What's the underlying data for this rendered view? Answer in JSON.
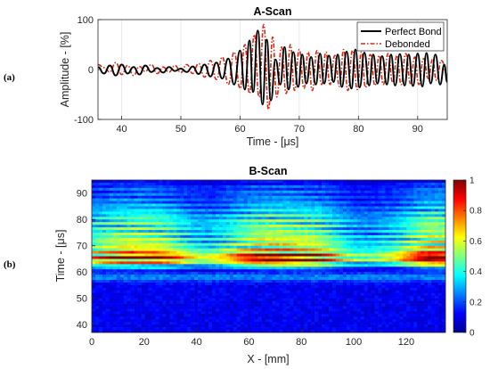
{
  "panel_labels": {
    "a": "(a)",
    "b": "(b)"
  },
  "chart_data": [
    {
      "type": "line",
      "title": "A-Scan",
      "xlabel": "Time - [μs]",
      "ylabel": "Amplitude - [%]",
      "xlim": [
        36,
        95
      ],
      "ylim": [
        -100,
        100
      ],
      "xticks": [
        40,
        50,
        60,
        70,
        80,
        90
      ],
      "yticks": [
        -100,
        0,
        100
      ],
      "grid": true,
      "legend_position": "top-right",
      "series": [
        {
          "name": "Perfect Bond",
          "color": "#000000",
          "style": "solid",
          "x": [
            36,
            37,
            38,
            39,
            40,
            41,
            42,
            43,
            44,
            45,
            46,
            47,
            48,
            49,
            50,
            51,
            52,
            53,
            54,
            55,
            56,
            57,
            58,
            59,
            60,
            60.8,
            61.6,
            62.2,
            63.0,
            63.8,
            64.5,
            65.2,
            66.0,
            66.8,
            67.5,
            68.2,
            69.0,
            69.8,
            70.5,
            71.2,
            72.0,
            72.8,
            73.5,
            74.2,
            75.0,
            75.8,
            76.5,
            77.2,
            78.0,
            78.8,
            79.5,
            80.2,
            81.0,
            81.8,
            82.5,
            83.2,
            84.0,
            84.8,
            85.5,
            86.2,
            87.0,
            87.8,
            88.5,
            89.2,
            90.0,
            90.8,
            91.5,
            92.2,
            93.0,
            93.8,
            94.5,
            95.0
          ],
          "y": [
            5,
            -8,
            8,
            -12,
            10,
            -8,
            5,
            -10,
            8,
            -5,
            3,
            -6,
            5,
            -3,
            2,
            -5,
            6,
            -9,
            10,
            -14,
            14,
            -18,
            22,
            -30,
            38,
            -40,
            58,
            -45,
            78,
            -70,
            60,
            -62,
            20,
            -30,
            45,
            -40,
            35,
            -35,
            30,
            -28,
            25,
            -30,
            32,
            -28,
            28,
            -25,
            30,
            -35,
            36,
            -38,
            40,
            -36,
            34,
            -32,
            30,
            -28,
            27,
            -30,
            30,
            -32,
            31,
            -32,
            30,
            -33,
            32,
            -34,
            33,
            -28,
            30,
            -30,
            10,
            -25
          ]
        },
        {
          "name": "Debonded",
          "color": "#d62a12",
          "style": "dashdot",
          "x": [
            36,
            37,
            38,
            39,
            40,
            41,
            42,
            43,
            44,
            45,
            46,
            47,
            48,
            49,
            50,
            51,
            52,
            53,
            54,
            55,
            56,
            57,
            58,
            59,
            60,
            60.8,
            61.6,
            62.4,
            63.2,
            64.0,
            64.8,
            65.5,
            66.2,
            67.0,
            67.8,
            68.5,
            69.2,
            70.0,
            70.8,
            71.5,
            72.2,
            73.0,
            73.8,
            74.5,
            75.2,
            76.0,
            76.8,
            77.5,
            78.2,
            79.0,
            79.8,
            80.5,
            81.2,
            82.0,
            82.8,
            83.5,
            84.2,
            85.0,
            85.8,
            86.5,
            87.2,
            88.0,
            88.8,
            89.5,
            90.2,
            91.0,
            91.8,
            92.5,
            93.2,
            94.0,
            95.0
          ],
          "y": [
            10,
            4,
            -5,
            14,
            -10,
            8,
            -12,
            6,
            -4,
            10,
            -8,
            5,
            -5,
            8,
            -6,
            10,
            -8,
            12,
            -15,
            18,
            -20,
            25,
            -30,
            35,
            -38,
            50,
            -48,
            70,
            -55,
            90,
            -80,
            65,
            -55,
            45,
            -48,
            50,
            -42,
            40,
            -38,
            35,
            -42,
            38,
            -30,
            35,
            -30,
            28,
            -34,
            40,
            -42,
            38,
            -40,
            35,
            -36,
            30,
            -32,
            28,
            -30,
            32,
            -26,
            28,
            -30,
            32,
            -28,
            25,
            -30,
            22,
            -18,
            20,
            -22,
            18,
            -10
          ]
        }
      ]
    },
    {
      "type": "heatmap",
      "title": "B-Scan",
      "xlabel": "X - [mm]",
      "ylabel": "Time - [μs]",
      "xlim": [
        0,
        135
      ],
      "ylim": [
        37,
        95
      ],
      "xticks": [
        0,
        20,
        40,
        60,
        80,
        100,
        120
      ],
      "yticks": [
        40,
        50,
        60,
        70,
        80,
        90
      ],
      "colormap": "jet",
      "colorbar": {
        "range": [
          0,
          1
        ],
        "ticks": [
          0,
          0.2,
          0.4,
          0.6,
          0.8,
          1
        ]
      }
    }
  ]
}
